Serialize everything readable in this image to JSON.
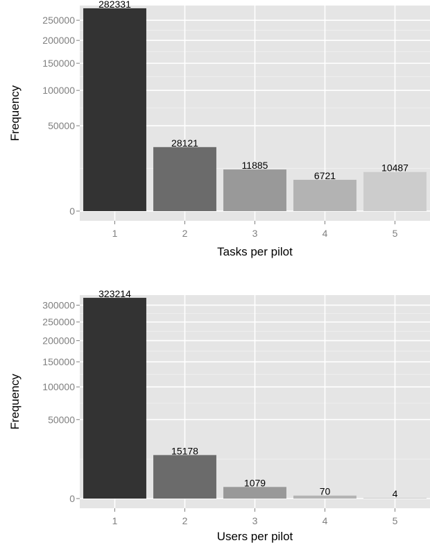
{
  "chart_data": [
    {
      "type": "bar",
      "xlabel": "Tasks per pilot",
      "ylabel": "Frequency",
      "y_scale": "sqrt",
      "ylim": [
        0,
        290000
      ],
      "y_ticks": [
        0,
        50000,
        100000,
        150000,
        200000,
        250000
      ],
      "y_tick_labels": [
        "0",
        "50000",
        "100000",
        "150000",
        "200000",
        "250000"
      ],
      "grid": true,
      "legend": "none",
      "categories": [
        "1",
        "2",
        "3",
        "4",
        "5"
      ],
      "values": [
        282331,
        28121,
        11885,
        6721,
        10487
      ],
      "data_labels": [
        "282331",
        "28121",
        "11885",
        "6721",
        "10487"
      ],
      "colors": [
        "#333333",
        "#6b6b6b",
        "#999999",
        "#b3b3b3",
        "#cccccc"
      ]
    },
    {
      "type": "bar",
      "xlabel": "Users per pilot",
      "ylabel": "Frequency",
      "y_scale": "sqrt",
      "ylim": [
        0,
        332000
      ],
      "y_ticks": [
        0,
        50000,
        100000,
        150000,
        200000,
        250000,
        300000
      ],
      "y_tick_labels": [
        "0",
        "50000",
        "100000",
        "150000",
        "200000",
        "250000",
        "300000"
      ],
      "grid": true,
      "legend": "none",
      "categories": [
        "1",
        "2",
        "3",
        "4",
        "5"
      ],
      "values": [
        323214,
        15178,
        1079,
        70,
        4
      ],
      "data_labels": [
        "323214",
        "15178",
        "1079",
        "70",
        "4"
      ],
      "colors": [
        "#333333",
        "#6b6b6b",
        "#999999",
        "#b3b3b3",
        "#cccccc"
      ]
    }
  ]
}
